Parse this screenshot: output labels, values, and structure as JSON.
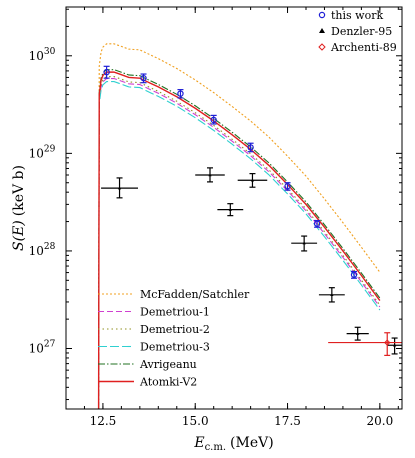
{
  "chart_data": {
    "type": "line",
    "xlabel": "E",
    "xlabel_sub": "c.m.",
    "xlabel_unit": "(MeV)",
    "ylabel_text": "(keV b)",
    "ylabel_var": "S(E)",
    "xlim": [
      11.5,
      20.6
    ],
    "ylim_log10": [
      26.38,
      30.5
    ],
    "yscale": "log",
    "grid": false,
    "x_ticks": [
      {
        "value": 12.5,
        "label": "12.5"
      },
      {
        "value": 15.0,
        "label": "15.0"
      },
      {
        "value": 17.5,
        "label": "17.5"
      },
      {
        "value": 20.0,
        "label": "20.0"
      }
    ],
    "y_ticks": [
      {
        "exp": 27,
        "label": "10",
        "sup": "27"
      },
      {
        "exp": 28,
        "label": "10",
        "sup": "28"
      },
      {
        "exp": 29,
        "label": "10",
        "sup": "29"
      },
      {
        "exp": 30,
        "label": "10",
        "sup": "30"
      }
    ],
    "line_legend_position": "bottom-left",
    "marker_legend_position": "top-right",
    "data_series": [
      {
        "name": "this work",
        "color": "#1f1fd6",
        "marker": "circle",
        "points": [
          {
            "x": 12.6,
            "y": 6.8e+29,
            "yerr_lo": 5.9e+29,
            "yerr_hi": 7.8e+29
          },
          {
            "x": 13.6,
            "y": 5.9e+29,
            "yerr_lo": 5.3e+29,
            "yerr_hi": 6.5e+29
          },
          {
            "x": 14.6,
            "y": 4.1e+29,
            "yerr_lo": 3.7e+29,
            "yerr_hi": 4.5e+29
          },
          {
            "x": 15.5,
            "y": 2.2e+29,
            "yerr_lo": 2e+29,
            "yerr_hi": 2.45e+29
          },
          {
            "x": 16.5,
            "y": 1.15e+29,
            "yerr_lo": 1.04e+29,
            "yerr_hi": 1.27e+29
          },
          {
            "x": 17.5,
            "y": 4.6e+28,
            "yerr_lo": 4.2e+28,
            "yerr_hi": 5e+28
          },
          {
            "x": 18.3,
            "y": 1.9e+28,
            "yerr_lo": 1.75e+28,
            "yerr_hi": 2.05e+28
          },
          {
            "x": 19.3,
            "y": 5.7e+27,
            "yerr_lo": 5.25e+27,
            "yerr_hi": 6.15e+27
          }
        ]
      },
      {
        "name": "Denzler-95",
        "color": "#000000",
        "marker": "triangle",
        "points": [
          {
            "x": 12.95,
            "y": 4.4e+28,
            "xerr": 0.5,
            "yerr_lo": 3.5e+28,
            "yerr_hi": 5.6e+28
          },
          {
            "x": 15.4,
            "y": 6e+28,
            "xerr": 0.4,
            "yerr_lo": 5.1e+28,
            "yerr_hi": 7.1e+28
          },
          {
            "x": 15.95,
            "y": 2.65e+28,
            "xerr": 0.35,
            "yerr_lo": 2.3e+28,
            "yerr_hi": 3.05e+28
          },
          {
            "x": 16.55,
            "y": 5.3e+28,
            "xerr": 0.4,
            "yerr_lo": 4.5e+28,
            "yerr_hi": 6.2e+28
          },
          {
            "x": 17.95,
            "y": 1.2e+28,
            "xerr": 0.35,
            "yerr_lo": 1e+28,
            "yerr_hi": 1.42e+28
          },
          {
            "x": 18.7,
            "y": 3.55e+27,
            "xerr": 0.35,
            "yerr_lo": 3e+27,
            "yerr_hi": 4.2e+27
          },
          {
            "x": 19.4,
            "y": 1.42e+27,
            "xerr": 0.3,
            "yerr_lo": 1.22e+27,
            "yerr_hi": 1.65e+27
          },
          {
            "x": 20.4,
            "y": 1.08e+27,
            "xerr": 0.2,
            "yerr_lo": 8.8e+26,
            "yerr_hi": 1.28e+27
          }
        ]
      },
      {
        "name": "Archenti-89",
        "color": "#e02020",
        "marker": "diamond",
        "points": [
          {
            "x": 20.2,
            "y": 1.15e+27,
            "xerr_lo": 18.6,
            "xerr_hi": 20.6,
            "yerr_lo": 8.5e+26,
            "yerr_hi": 1.45e+27
          }
        ]
      }
    ],
    "model_curves": [
      {
        "name": "McFadden/Satchler",
        "color": "#f0a020",
        "dash": "2,2",
        "scale": 1.95
      },
      {
        "name": "Demetriou-1",
        "color": "#d040d0",
        "dash": "6,3",
        "scale": 0.86
      },
      {
        "name": "Demetriou-2",
        "color": "#909020",
        "dash": "1.5,3",
        "scale": 0.9
      },
      {
        "name": "Demetriou-3",
        "color": "#30d0d0",
        "dash": "9,3",
        "scale": 0.8
      },
      {
        "name": "Avrigeanu",
        "color": "#207020",
        "dash": "7,2,1.5,2",
        "scale": 1.06
      },
      {
        "name": "Atomki-V2",
        "color": "#e02020",
        "dash": "",
        "scale": 1.0
      }
    ],
    "reference_curve": {
      "x": [
        12.38,
        12.4,
        12.45,
        12.5,
        12.6,
        12.8,
        13.0,
        13.2,
        13.5,
        13.8,
        14.0,
        14.5,
        15.0,
        15.5,
        16.0,
        16.5,
        17.0,
        17.5,
        18.0,
        18.5,
        19.0,
        19.5,
        20.0
      ],
      "y": [
        1e+25,
        4e+29,
        5.6e+29,
        6.3e+29,
        6.8e+29,
        6.8e+29,
        6.4e+29,
        6e+29,
        5.9e+29,
        5.2e+29,
        4.8e+29,
        3.8e+29,
        2.9e+29,
        2.15e+29,
        1.55e+29,
        1.1e+29,
        7.5e+28,
        4.8e+28,
        3e+28,
        1.75e+28,
        1e+28,
        5.6e+27,
        3.1e+27
      ]
    }
  }
}
